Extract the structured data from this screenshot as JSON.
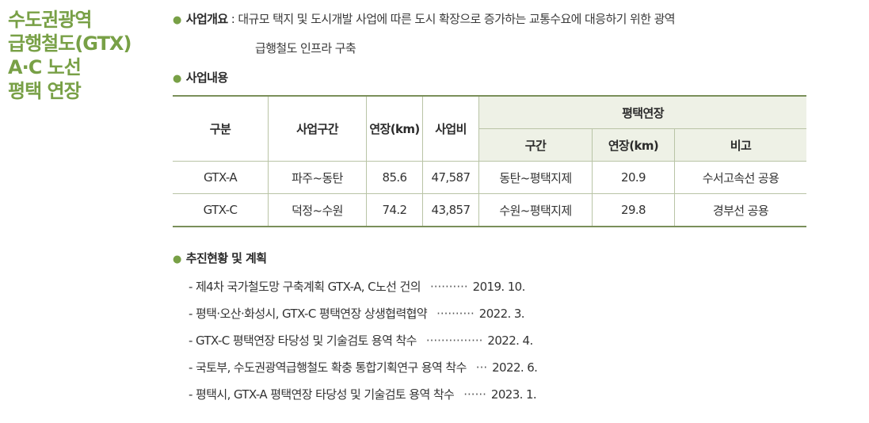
{
  "side_title": [
    "수도권광역",
    "급행철도(GTX)",
    "A·C 노선",
    "평택 연장"
  ],
  "overview": {
    "bullet": "●",
    "label": "사업개요",
    "separator": " : ",
    "text_line1": "대규모 택지 및 도시개발 사업에 따른 도시 확장으로 증가하는 교통수요에 대응하기 위한 광역",
    "text_line2": "급행철도 인프라 구축"
  },
  "content_section": {
    "bullet": "●",
    "label": "사업내용"
  },
  "table": {
    "headers": {
      "category": "구분",
      "section": "사업구간",
      "length": "연장(km)",
      "cost": "사업비",
      "extension_group": "평택연장",
      "ext_section": "구간",
      "ext_length": "연장(km)",
      "note": "비고"
    },
    "rows": [
      {
        "category": "GTX-A",
        "section": "파주~동탄",
        "length": "85.6",
        "cost": "47,587",
        "ext_section": "동탄~평택지제",
        "ext_length": "20.9",
        "note": "수서고속선 공용"
      },
      {
        "category": "GTX-C",
        "section": "덕정~수원",
        "length": "74.2",
        "cost": "43,857",
        "ext_section": "수원~평택지제",
        "ext_length": "29.8",
        "note": "경부선 공용"
      }
    ]
  },
  "progress": {
    "bullet": "●",
    "label": "추진현황 및 계획",
    "items": [
      {
        "text": "- 제4차 국가철도망 구축계획 GTX-A, C노선 건의",
        "leader": "··········",
        "date": "2019. 10."
      },
      {
        "text": "- 평택·오산·화성시, GTX-C 평택연장 상생협력협약",
        "leader": "··········",
        "date": "2022. 3."
      },
      {
        "text": "- GTX-C 평택연장 타당성 및 기술검토 용역 착수",
        "leader": "···············",
        "date": "2022. 4."
      },
      {
        "text": "- 국토부, 수도권광역급행철도 확충 통합기획연구 용역 착수",
        "leader": "···",
        "date": "2022. 6."
      },
      {
        "text": "- 평택시, GTX-A 평택연장 타당성 및 기술검토 용역 착수",
        "leader": "······",
        "date": "2023. 1."
      }
    ]
  },
  "colors": {
    "accent": "#78a046",
    "table_rule": "#7a8f5a",
    "header_shade": "#eef1e6"
  }
}
